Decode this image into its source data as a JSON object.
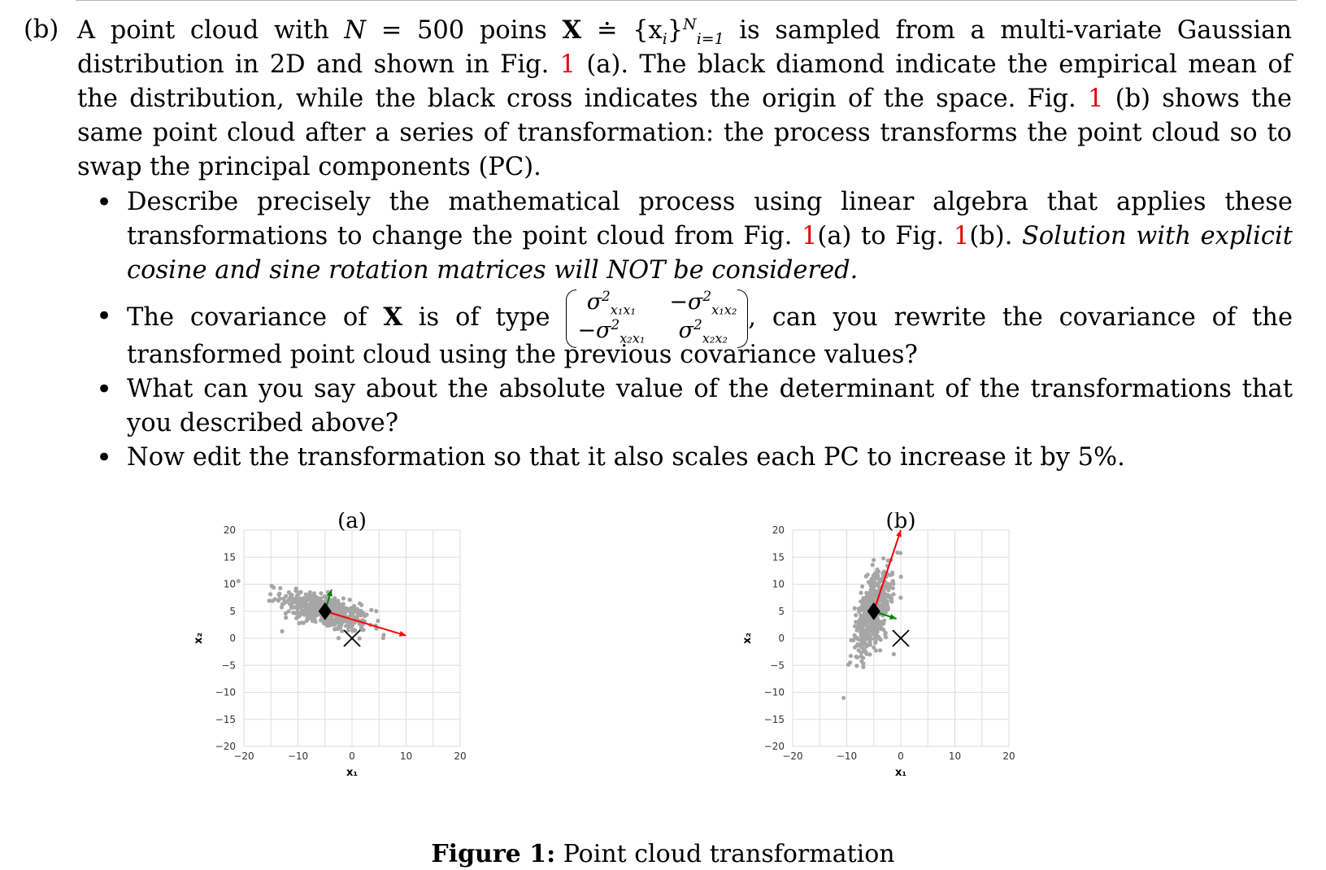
{
  "question": {
    "label": "(b)",
    "intro_1": "A point cloud with ",
    "intro_N": "N",
    "intro_eq": " = 500 poins ",
    "intro_X": "X",
    "intro_def": " ≐ {x",
    "intro_i": "i",
    "intro_close": "}",
    "intro_sup": "N",
    "intro_sub": "i=1",
    "intro_2": " is sampled from a multi-variate Gaussian distribution in 2D and shown in Fig. ",
    "ref": "1",
    "intro_3": " (a). The black diamond indicate the empirical mean of the distribution, while the black cross indicates the origin of the space. Fig. ",
    "intro_4": " (b) shows the same point cloud after a series of transformation: the process transforms the point cloud so to swap the principal components (PC)."
  },
  "bullets": {
    "b1_text": "Describe precisely the mathematical process using linear algebra that applies these transformations to change the point cloud from Fig. ",
    "b1_mid_a": "(a) to Fig. ",
    "b1_mid_b": "(b). ",
    "b1_italic": "Solution with explicit cosine and sine rotation matrices will NOT be considered.",
    "b2_pre": "The covariance of ",
    "b2_X": "X",
    "b2_mid": " is of type ",
    "b2_post": ", can you rewrite the covariance of the transformed point cloud using the previous covariance values?",
    "m11": "σ",
    "m11_sup": "2",
    "m11_sub": "x₁x₁",
    "m12": "−σ",
    "m12_sup": "2",
    "m12_sub": "x₁x₂",
    "m21": "−σ",
    "m21_sup": "2",
    "m21_sub": "x₂x₁",
    "m22": "σ",
    "m22_sup": "2",
    "m22_sub": "x₂x₂",
    "b3": "What can you say about the absolute value of the determinant of the transformations that you described above?",
    "b4": "Now edit the transformation so that it also scales each PC to increase it by 5%."
  },
  "figure": {
    "caption_label": "Figure 1:",
    "caption_text": " Point cloud transformation"
  },
  "chart_data": [
    {
      "type": "scatter",
      "title": "(a)",
      "xlabel": "x₁",
      "ylabel": "x₂",
      "xlim": [
        -20,
        20
      ],
      "ylim": [
        -20,
        20
      ],
      "xticks": [
        "−20",
        "−10",
        "0",
        "10",
        "20"
      ],
      "yticks": [
        "20",
        "15",
        "10",
        "5",
        "0",
        "−5",
        "−10",
        "−15",
        "−20"
      ],
      "grid": true,
      "n_points": 500,
      "point_color": "#a6a6a6",
      "mean": [
        -5,
        5
      ],
      "origin_marker": [
        0,
        0
      ],
      "vectors": [
        {
          "color": "#ff0000",
          "from": [
            -5,
            5
          ],
          "to": [
            10,
            0.5
          ]
        },
        {
          "color": "#008000",
          "from": [
            -5,
            5
          ],
          "to": [
            -3.8,
            9
          ]
        }
      ],
      "pc_major_angle_deg": -17,
      "pc_major_std": 4.2,
      "pc_minor_std": 1.4
    },
    {
      "type": "scatter",
      "title": "(b)",
      "xlabel": "x₁",
      "ylabel": "x₂",
      "xlim": [
        -20,
        20
      ],
      "ylim": [
        -20,
        20
      ],
      "xticks": [
        "−20",
        "−10",
        "0",
        "10",
        "20"
      ],
      "yticks": [
        "20",
        "15",
        "10",
        "5",
        "0",
        "−5",
        "−10",
        "−15",
        "−20"
      ],
      "grid": true,
      "n_points": 500,
      "point_color": "#a6a6a6",
      "mean": [
        -5,
        5
      ],
      "origin_marker": [
        0,
        0
      ],
      "vectors": [
        {
          "color": "#ff0000",
          "from": [
            -5,
            5
          ],
          "to": [
            0,
            20
          ]
        },
        {
          "color": "#008000",
          "from": [
            -5,
            5
          ],
          "to": [
            -0.8,
            3.6
          ]
        }
      ],
      "pc_major_angle_deg": 73,
      "pc_major_std": 4.2,
      "pc_minor_std": 1.4
    }
  ]
}
